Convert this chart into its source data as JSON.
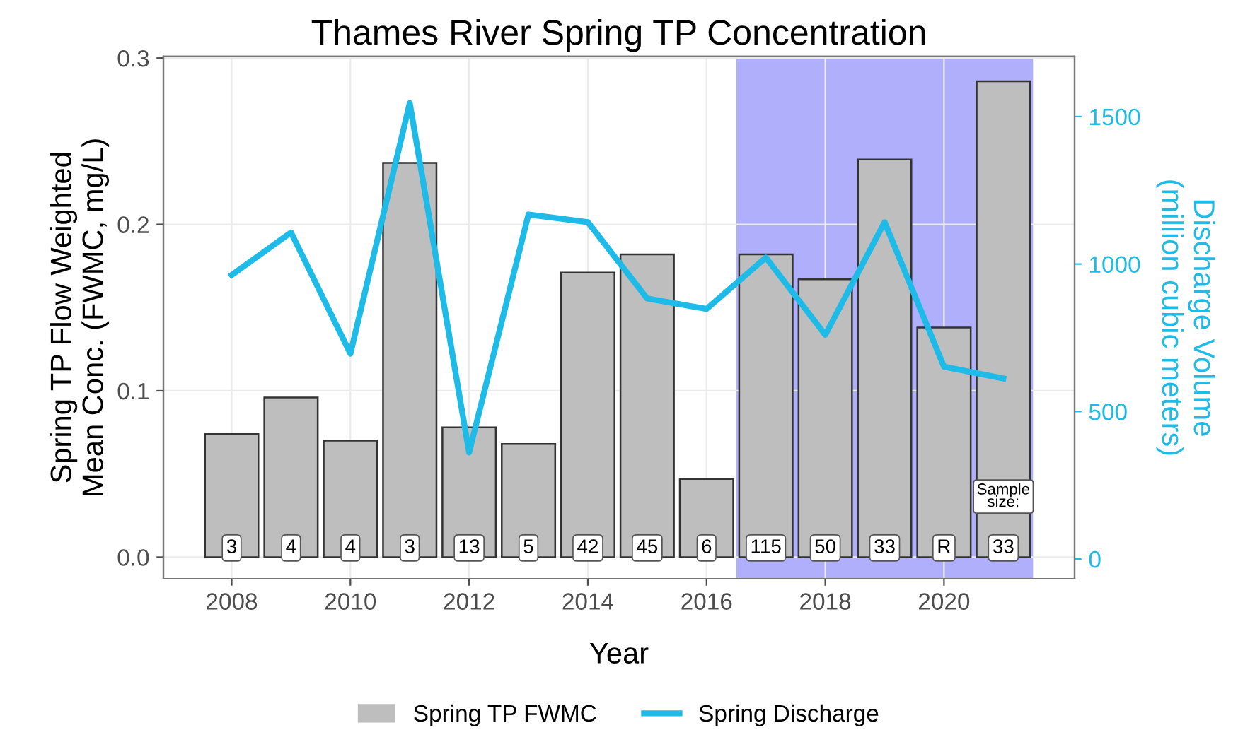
{
  "chart_data": {
    "type": "bar",
    "title": "Thames River Spring TP Concentration",
    "xlabel": "Year",
    "ylabel": "Spring TP Flow Weighted\nMean Conc. (FWMC, mg/L)",
    "y2label": "Discharge Volume\n(million cubic meters)",
    "x": [
      2008,
      2009,
      2010,
      2011,
      2012,
      2013,
      2014,
      2015,
      2016,
      2017,
      2018,
      2019,
      2020,
      2021
    ],
    "series": [
      {
        "name": "Spring TP FWMC",
        "color": "#bebebe",
        "values": [
          0.074,
          0.096,
          0.07,
          0.237,
          0.078,
          0.068,
          0.171,
          0.182,
          0.047,
          0.182,
          0.167,
          0.239,
          0.138,
          0.286
        ]
      },
      {
        "name": "Spring Discharge",
        "type": "line",
        "axis": "y2",
        "color": "#1ebbe8",
        "values": [
          963,
          1107,
          696,
          1546,
          361,
          1168,
          1142,
          883,
          848,
          1022,
          760,
          1142,
          652,
          612
        ]
      }
    ],
    "xlim": [
      2006.85,
      2022.2
    ],
    "xticks": [
      2008,
      2010,
      2012,
      2014,
      2016,
      2018,
      2020
    ],
    "ylim": [
      -0.013,
      0.301
    ],
    "yticks": [
      {
        "value": 0,
        "label": "0.0"
      },
      0.1,
      0.2,
      0.3
    ],
    "y2lim": [
      -67,
      1704
    ],
    "y2ticks": [
      0,
      500,
      1000,
      1500
    ],
    "bands": [
      {
        "axis": "x",
        "from": 2016.5,
        "to": 2021.5,
        "color": "#afaffc"
      }
    ],
    "annotations": [
      {
        "text": "3",
        "x": 2008,
        "y": 0
      },
      {
        "text": "4",
        "x": 2009,
        "y": 0
      },
      {
        "text": "4",
        "x": 2010,
        "y": 0
      },
      {
        "text": "3",
        "x": 2011,
        "y": 0
      },
      {
        "text": "13",
        "x": 2012,
        "y": 0
      },
      {
        "text": "5",
        "x": 2013,
        "y": 0
      },
      {
        "text": "42",
        "x": 2014,
        "y": 0
      },
      {
        "text": "45",
        "x": 2015,
        "y": 0
      },
      {
        "text": "6",
        "x": 2016,
        "y": 0
      },
      {
        "text": "115",
        "x": 2017,
        "y": 0
      },
      {
        "text": "50",
        "x": 2018,
        "y": 0
      },
      {
        "text": "33",
        "x": 2019,
        "y": 0
      },
      {
        "text": "R",
        "x": 2020,
        "y": 0
      },
      {
        "text": "33",
        "x": 2021,
        "y": 0
      },
      "Sample\nsize:"
    ],
    "grid": true,
    "legend": "bottom"
  }
}
